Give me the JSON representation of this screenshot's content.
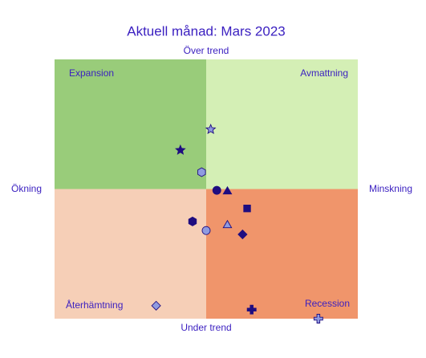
{
  "chart_data": {
    "type": "scatter",
    "title": "Aktuell månad: Mars 2023",
    "top_label": "Över trend",
    "bottom_label": "Under trend",
    "left_label": "Ökning",
    "right_label": "Minskning",
    "quadrants": [
      {
        "label": "Expansion",
        "color": "#99cc7a"
      },
      {
        "label": "Avmattning",
        "color": "#d4efb5"
      },
      {
        "label": "Återhämtning",
        "color": "#f6cfb7"
      },
      {
        "label": "Recession",
        "color": "#f0956b"
      }
    ],
    "xlim": [
      -1,
      1
    ],
    "ylim": [
      -1,
      1
    ],
    "x": [
      0.03,
      -0.17,
      -0.03,
      0.07,
      0.14,
      0.27,
      -0.09,
      0.14,
      0.0,
      0.24,
      -0.33,
      0.3,
      0.74
    ],
    "values": [
      0.46,
      0.3,
      0.13,
      -0.01,
      -0.02,
      -0.15,
      -0.25,
      -0.28,
      -0.32,
      -0.35,
      -0.9,
      -0.93,
      -1.0
    ],
    "markers": [
      "star",
      "star",
      "hexagon",
      "circle",
      "triangle",
      "square",
      "hexagon",
      "triangle",
      "circle",
      "diamond",
      "diamond",
      "plus",
      "plus"
    ],
    "colors": [
      "#8f9be0",
      "#1f0d80",
      "#8f9be0",
      "#1f0d80",
      "#1f0d80",
      "#1f0d80",
      "#1f0d80",
      "#8f9be0",
      "#8f9be0",
      "#1f0d80",
      "#8f9be0",
      "#1f0d80",
      "#8f9be0"
    ],
    "marker_edge_color": "#1f0d80"
  }
}
